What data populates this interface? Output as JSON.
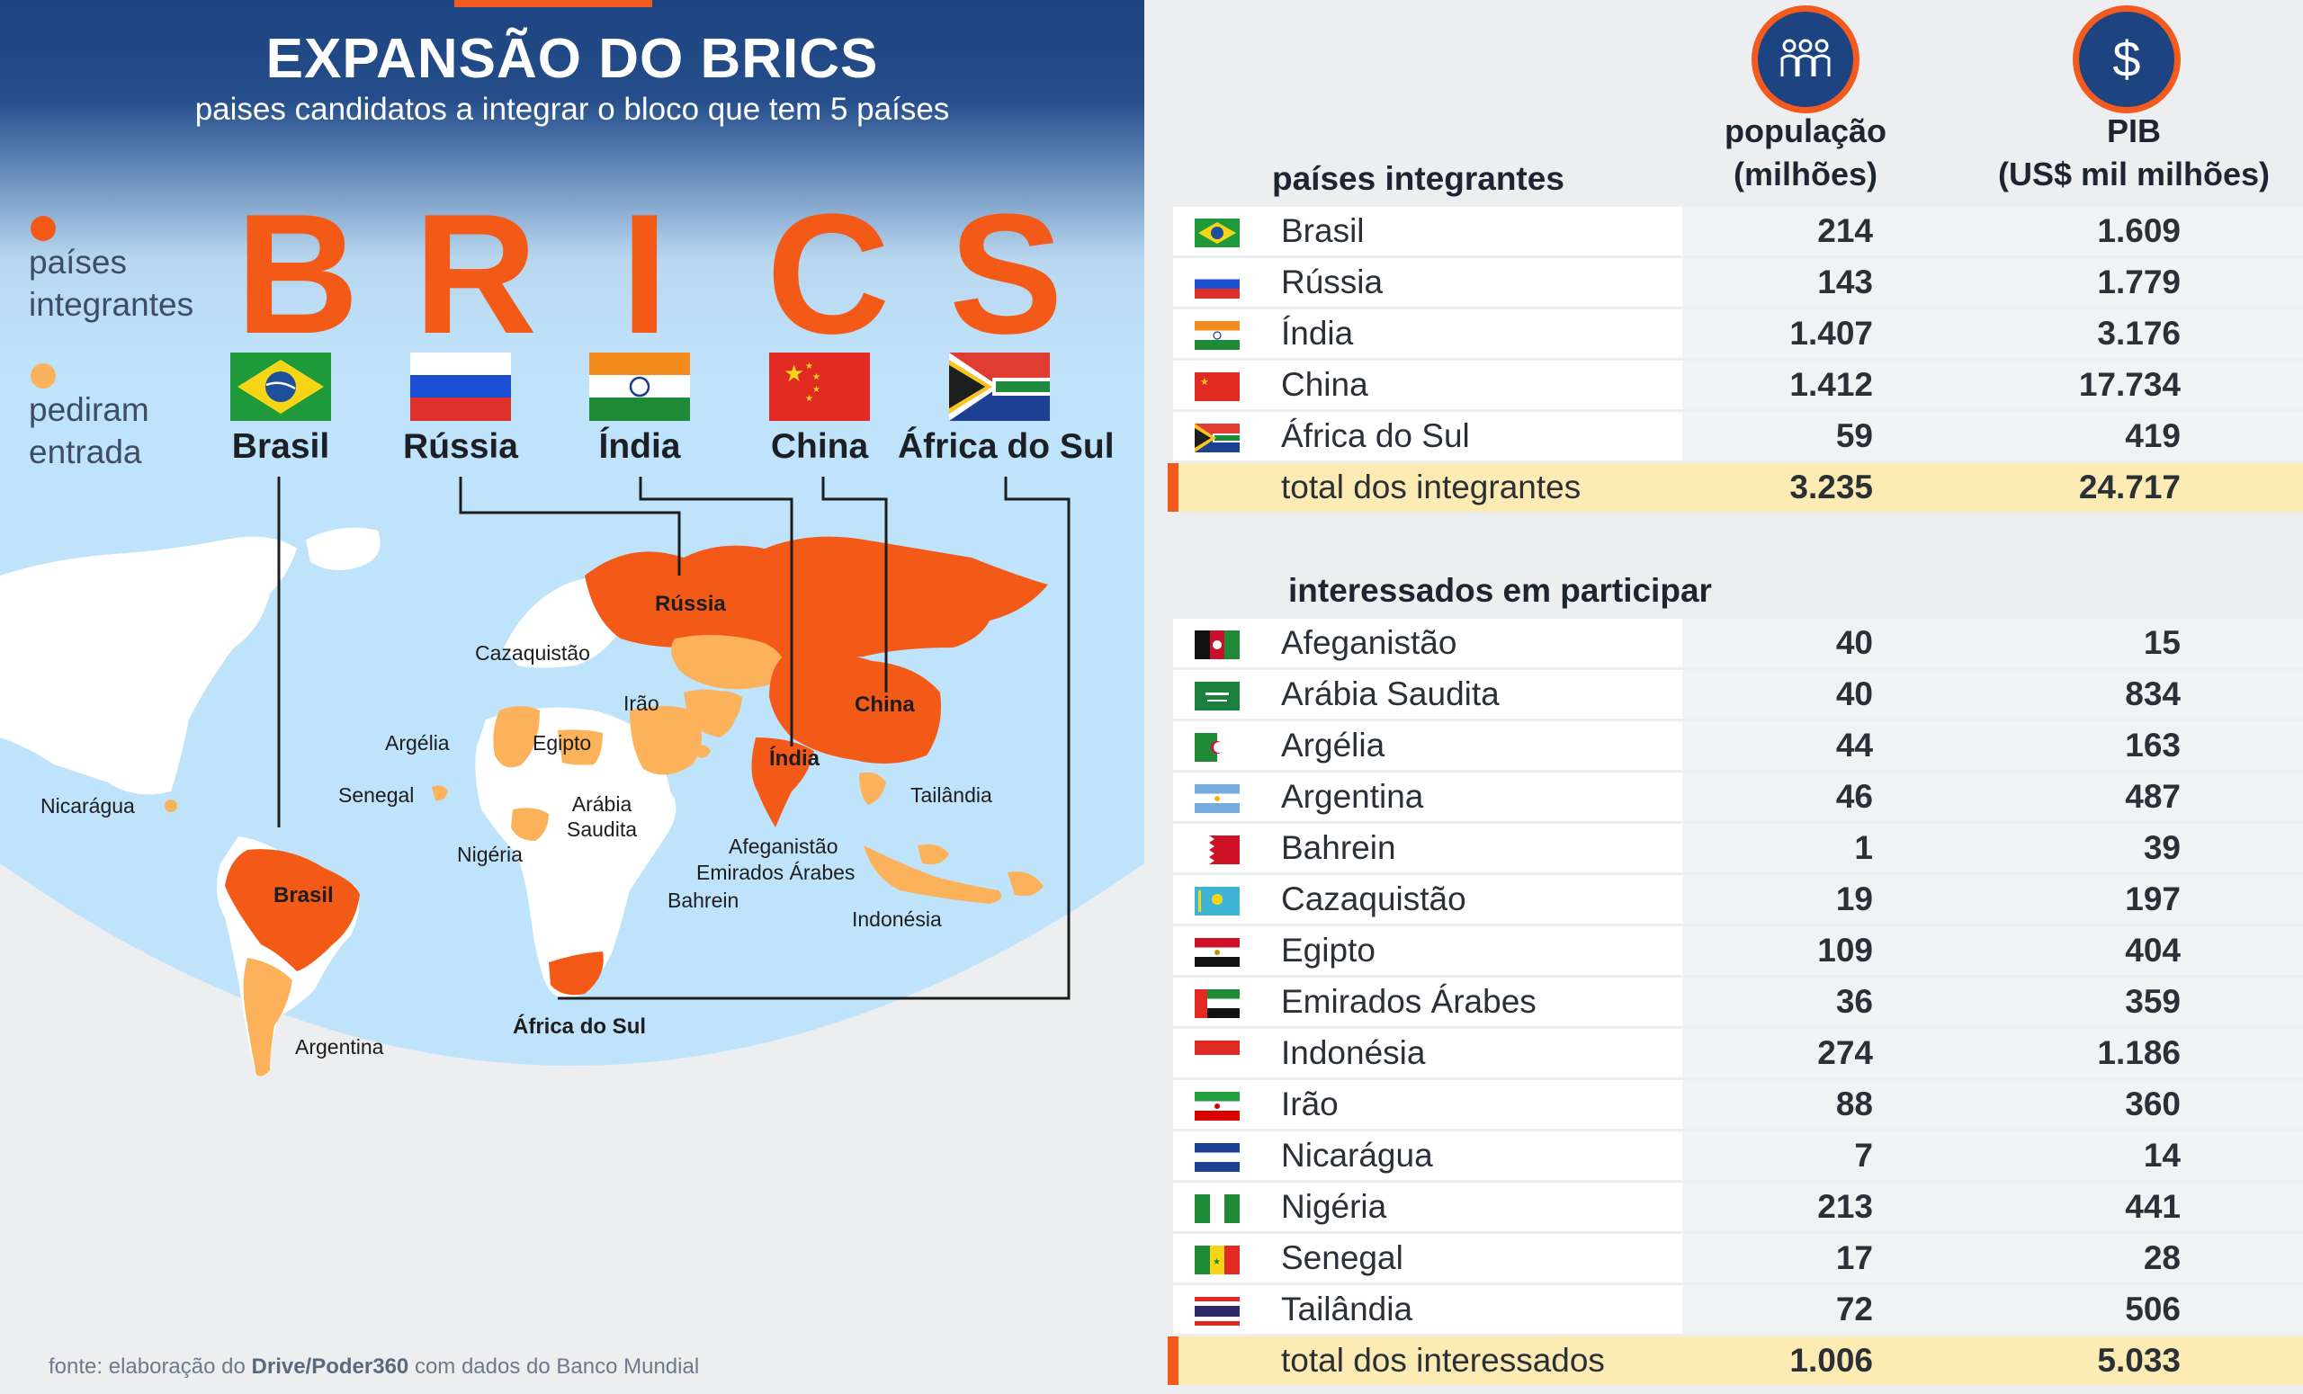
{
  "header": {
    "title": "EXPANSÃO DO BRICS",
    "subtitle": "paises candidatos a integrar o bloco que tem 5 países"
  },
  "legend": {
    "members": {
      "label": "países integrantes",
      "color": "#f45a17"
    },
    "applicants": {
      "label": "pediram entrada",
      "color": "#fcb25a"
    }
  },
  "brics": {
    "letters": [
      "B",
      "R",
      "I",
      "C",
      "S"
    ],
    "countries": [
      "Brasil",
      "Rússia",
      "Índia",
      "China",
      "África do Sul"
    ]
  },
  "map_labels": {
    "russia": "Rússia",
    "china": "China",
    "india": "Índia",
    "brasil": "Brasil",
    "south_africa": "África do Sul",
    "kazakhstan": "Cazaquistão",
    "iran": "Irão",
    "algeria": "Argélia",
    "egypt": "Egipto",
    "senegal": "Senegal",
    "nicaragua": "Nicarágua",
    "nigeria": "Nigéria",
    "saudi_arabia": "Arábia\nSaudita",
    "afghanistan": "Afeganistão",
    "uae": "Emirados Árabes",
    "bahrain": "Bahrein",
    "thailand": "Tailândia",
    "indonesia": "Indonésia",
    "argentina": "Argentina"
  },
  "source": {
    "prefix": "fonte: elaboração do ",
    "org": "Drive/Poder360",
    "suffix": " com dados do Banco Mundial"
  },
  "table": {
    "col_population": "população\n(milhões)",
    "col_gdp": "PIB\n(US$ mil milhões)",
    "members_heading": "países integrantes",
    "members": [
      {
        "name": "Brasil",
        "pop": "214",
        "gdp": "1.609",
        "flag": "brasil"
      },
      {
        "name": "Rússia",
        "pop": "143",
        "gdp": "1.779",
        "flag": "russia"
      },
      {
        "name": "Índia",
        "pop": "1.407",
        "gdp": "3.176",
        "flag": "india"
      },
      {
        "name": "China",
        "pop": "1.412",
        "gdp": "17.734",
        "flag": "china"
      },
      {
        "name": "África do Sul",
        "pop": "59",
        "gdp": "419",
        "flag": "south-africa"
      }
    ],
    "members_total": {
      "name": "total dos integrantes",
      "pop": "3.235",
      "gdp": "24.717"
    },
    "applicants_heading": "interessados em participar",
    "applicants": [
      {
        "name": "Afeganistão",
        "pop": "40",
        "gdp": "15",
        "flag": "afghanistan"
      },
      {
        "name": "Arábia Saudita",
        "pop": "40",
        "gdp": "834",
        "flag": "saudi-arabia"
      },
      {
        "name": "Argélia",
        "pop": "44",
        "gdp": "163",
        "flag": "algeria"
      },
      {
        "name": "Argentina",
        "pop": "46",
        "gdp": "487",
        "flag": "argentina"
      },
      {
        "name": "Bahrein",
        "pop": "1",
        "gdp": "39",
        "flag": "bahrain"
      },
      {
        "name": "Cazaquistão",
        "pop": "19",
        "gdp": "197",
        "flag": "kazakhstan"
      },
      {
        "name": "Egipto",
        "pop": "109",
        "gdp": "404",
        "flag": "egypt"
      },
      {
        "name": "Emirados Árabes",
        "pop": "36",
        "gdp": "359",
        "flag": "uae"
      },
      {
        "name": "Indonésia",
        "pop": "274",
        "gdp": "1.186",
        "flag": "indonesia"
      },
      {
        "name": "Irão",
        "pop": "88",
        "gdp": "360",
        "flag": "iran"
      },
      {
        "name": "Nicarágua",
        "pop": "7",
        "gdp": "14",
        "flag": "nicaragua"
      },
      {
        "name": "Nigéria",
        "pop": "213",
        "gdp": "441",
        "flag": "nigeria"
      },
      {
        "name": "Senegal",
        "pop": "17",
        "gdp": "28",
        "flag": "senegal"
      },
      {
        "name": "Tailândia",
        "pop": "72",
        "gdp": "506",
        "flag": "thailand"
      }
    ],
    "applicants_total": {
      "name": "total dos interessados",
      "pop": "1.006",
      "gdp": "5.033"
    }
  }
}
